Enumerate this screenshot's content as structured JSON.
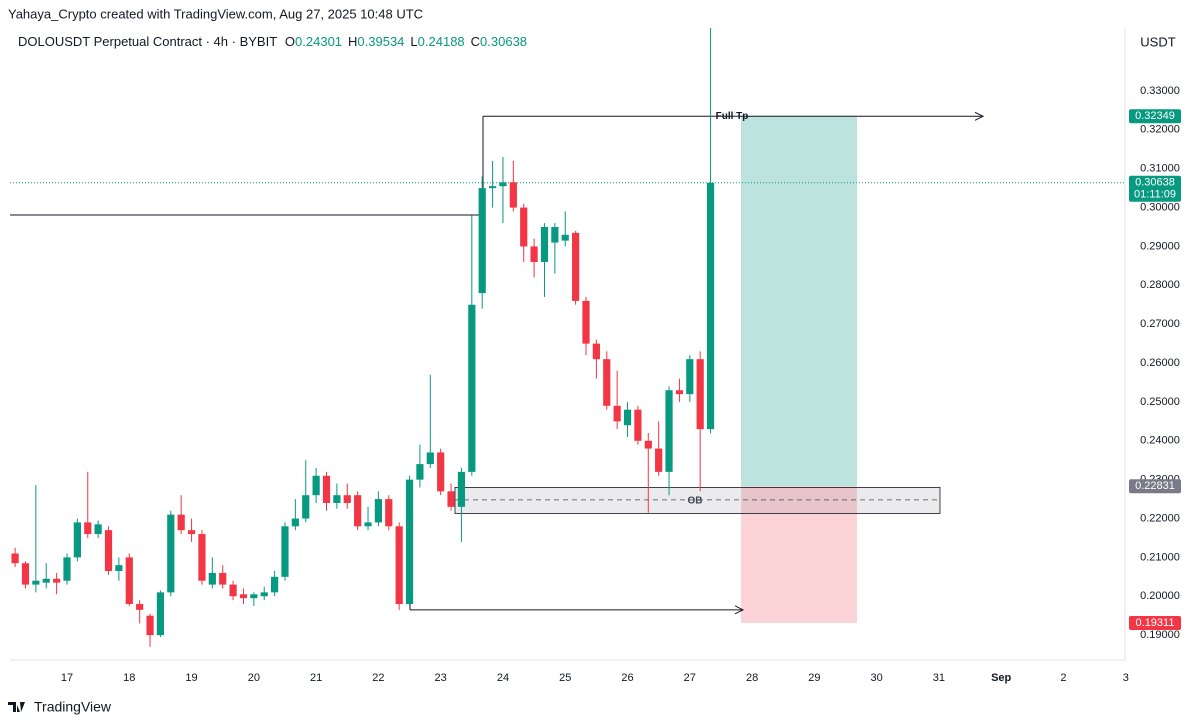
{
  "chart_data": {
    "type": "candlestick",
    "attribution": "Yahaya_Crypto created with TradingView.com, Aug 27, 2025 10:48 UTC",
    "title": "DOLOUSDT Perpetual Contract · 4h · BYBIT",
    "currency": "USDT",
    "footer": "TradingView",
    "legend_keys": [
      "O",
      "H",
      "L",
      "C"
    ],
    "legend_values": [
      0.24301,
      0.39534,
      0.24188,
      0.30638
    ],
    "up_color": "#089981",
    "down_color": "#f23645",
    "open": [
      0.211,
      0.2085,
      0.203,
      0.2035,
      0.2045,
      0.204,
      0.21,
      0.219,
      0.216,
      0.217,
      0.2065,
      0.21,
      0.198,
      0.195,
      0.19,
      0.201,
      0.221,
      0.217,
      0.216,
      0.203,
      0.206,
      0.203,
      0.2005,
      0.1995,
      0.2,
      0.201,
      0.205,
      0.218,
      0.22,
      0.226,
      0.231,
      0.224,
      0.226,
      0.226,
      0.218,
      0.219,
      0.225,
      0.218,
      0.198,
      0.23,
      0.234,
      0.237,
      0.227,
      0.223,
      0.232,
      0.278,
      0.305,
      0.3055,
      0.3065,
      0.3,
      0.29,
      0.286,
      0.291,
      0.2915,
      0.2935,
      0.276,
      0.265,
      0.261,
      0.249,
      0.244,
      0.248,
      0.24,
      0.238,
      0.232,
      0.253,
      0.252,
      0.261,
      0.24301
    ],
    "high": [
      0.2125,
      0.209,
      0.2286,
      0.2085,
      0.206,
      0.211,
      0.22,
      0.232,
      0.2195,
      0.218,
      0.21,
      0.211,
      0.199,
      0.1955,
      0.2015,
      0.222,
      0.226,
      0.22,
      0.217,
      0.21,
      0.208,
      0.204,
      0.202,
      0.201,
      0.2025,
      0.2065,
      0.219,
      0.225,
      0.235,
      0.233,
      0.232,
      0.229,
      0.229,
      0.227,
      0.223,
      0.227,
      0.226,
      0.219,
      0.231,
      0.239,
      0.257,
      0.238,
      0.229,
      0.233,
      0.298,
      0.308,
      0.312,
      0.313,
      0.312,
      0.301,
      0.292,
      0.296,
      0.296,
      0.299,
      0.294,
      0.277,
      0.266,
      0.263,
      0.258,
      0.25,
      0.249,
      0.242,
      0.245,
      0.254,
      0.256,
      0.262,
      0.263,
      0.39534
    ],
    "low": [
      0.2075,
      0.202,
      0.201,
      0.202,
      0.2005,
      0.203,
      0.209,
      0.215,
      0.215,
      0.2055,
      0.204,
      0.1975,
      0.193,
      0.187,
      0.1895,
      0.2,
      0.216,
      0.214,
      0.203,
      0.202,
      0.202,
      0.199,
      0.198,
      0.1975,
      0.199,
      0.2,
      0.204,
      0.217,
      0.219,
      0.224,
      0.222,
      0.2225,
      0.2225,
      0.217,
      0.217,
      0.218,
      0.217,
      0.1965,
      0.1975,
      0.228,
      0.233,
      0.226,
      0.222,
      0.214,
      0.231,
      0.274,
      0.3,
      0.296,
      0.299,
      0.286,
      0.282,
      0.277,
      0.283,
      0.29,
      0.275,
      0.262,
      0.256,
      0.248,
      0.243,
      0.241,
      0.239,
      0.2215,
      0.231,
      0.226,
      0.25,
      0.25,
      0.227,
      0.24188
    ],
    "close": [
      0.2085,
      0.203,
      0.204,
      0.2045,
      0.2035,
      0.21,
      0.219,
      0.216,
      0.2185,
      0.2065,
      0.208,
      0.198,
      0.1965,
      0.19,
      0.201,
      0.221,
      0.217,
      0.216,
      0.204,
      0.206,
      0.203,
      0.2,
      0.1995,
      0.2005,
      0.201,
      0.205,
      0.218,
      0.22,
      0.226,
      0.231,
      0.224,
      0.226,
      0.224,
      0.218,
      0.219,
      0.225,
      0.218,
      0.198,
      0.23,
      0.234,
      0.237,
      0.227,
      0.223,
      0.232,
      0.275,
      0.305,
      0.3055,
      0.3065,
      0.3,
      0.29,
      0.286,
      0.295,
      0.295,
      0.293,
      0.276,
      0.265,
      0.261,
      0.249,
      0.245,
      0.248,
      0.24,
      0.238,
      0.232,
      0.253,
      0.252,
      0.261,
      0.243,
      0.30638
    ],
    "xticks": [
      "17",
      "18",
      "19",
      "20",
      "21",
      "22",
      "23",
      "24",
      "25",
      "26",
      "27",
      "28",
      "29",
      "30",
      "31",
      "Sep",
      "2",
      "3"
    ],
    "ylim": [
      0.1836,
      0.3462
    ],
    "yticks": [
      {
        "value": 0.19,
        "label": "0.19000"
      },
      {
        "value": 0.2,
        "label": "0.20000"
      },
      {
        "value": 0.21,
        "label": "0.21000"
      },
      {
        "value": 0.22,
        "label": "0.22000"
      },
      {
        "value": 0.23,
        "label": "0.23000"
      },
      {
        "value": 0.24,
        "label": "0.24000"
      },
      {
        "value": 0.25,
        "label": "0.25000"
      },
      {
        "value": 0.26,
        "label": "0.26000"
      },
      {
        "value": 0.27,
        "label": "0.27000"
      },
      {
        "value": 0.28,
        "label": "0.28000"
      },
      {
        "value": 0.29,
        "label": "0.29000"
      },
      {
        "value": 0.3,
        "label": "0.30000"
      },
      {
        "value": 0.31,
        "label": "0.31000"
      },
      {
        "value": 0.32,
        "label": "0.32000"
      },
      {
        "value": 0.33,
        "label": "0.33000"
      }
    ],
    "last_price": {
      "value": 0.30638,
      "countdown": "01:11:09"
    },
    "position": {
      "target": 0.32349,
      "entry": 0.22831,
      "stop": 0.19311,
      "target_label": "Full Tp"
    },
    "order_block": {
      "label": "OB",
      "top": 0.228,
      "bottom": 0.2213,
      "mid": 0.2248
    },
    "levels": {
      "breakout": 0.2981,
      "sweep_low": 0.1965
    }
  }
}
